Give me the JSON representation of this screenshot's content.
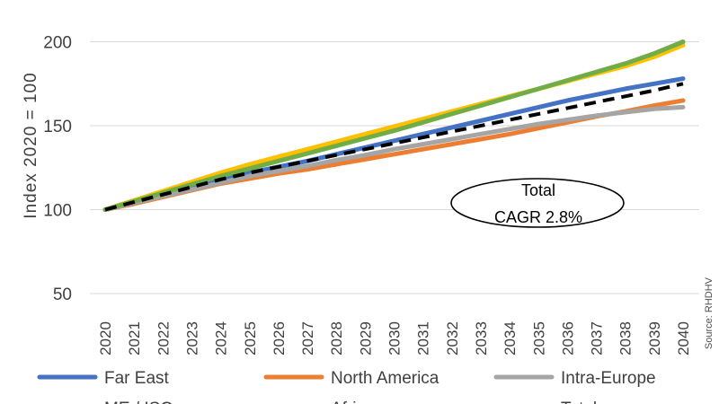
{
  "chart_data": {
    "type": "line",
    "x": [
      2020,
      2021,
      2022,
      2023,
      2024,
      2025,
      2026,
      2027,
      2028,
      2029,
      2030,
      2031,
      2032,
      2033,
      2034,
      2035,
      2036,
      2037,
      2038,
      2039,
      2040
    ],
    "x_tick_labels": [
      "2020",
      "2021",
      "2022",
      "2023",
      "2024",
      "2025",
      "2026",
      "2027",
      "2028",
      "2029",
      "2030",
      "2031",
      "2032",
      "2033",
      "2034",
      "2035",
      "2036",
      "2037",
      "2038",
      "2039",
      "2040"
    ],
    "ylabel": "Index 2020 = 100",
    "ylim": [
      50,
      210
    ],
    "yticks": [
      50,
      100,
      150,
      200
    ],
    "grid": "horizontal",
    "legend_position": "bottom",
    "series": [
      {
        "name": "Far East",
        "color": "#4472C4",
        "dash": "solid",
        "values": [
          100,
          104,
          108.5,
          113,
          117.5,
          122,
          125.5,
          129,
          133,
          137,
          141,
          145,
          149,
          153,
          157,
          161,
          165,
          168.5,
          172,
          175,
          178
        ]
      },
      {
        "name": "North America",
        "color": "#ED7D31",
        "dash": "solid",
        "values": [
          100,
          103.5,
          107.5,
          111.5,
          115.5,
          118.5,
          121.5,
          124,
          127,
          130,
          133,
          136,
          139,
          142,
          145,
          148.5,
          152,
          155.5,
          158.5,
          162,
          165
        ]
      },
      {
        "name": "Intra-Europe",
        "color": "#A5A5A5",
        "dash": "solid",
        "values": [
          100,
          104,
          108,
          112,
          116,
          120,
          123,
          126,
          129.5,
          132.5,
          136,
          139,
          142,
          145,
          148,
          151,
          153.5,
          156,
          158,
          160,
          161
        ]
      },
      {
        "name": "ME / ISC",
        "color": "#FFC000",
        "dash": "solid",
        "values": [
          100,
          105.5,
          111,
          116.5,
          122,
          127,
          131.5,
          136,
          140.5,
          145,
          149.5,
          154,
          158.5,
          163,
          167.5,
          172,
          176.5,
          181,
          185.5,
          191,
          198
        ]
      },
      {
        "name": "Africa",
        "color": "#70AD47",
        "dash": "solid",
        "values": [
          100,
          105,
          110,
          115,
          120,
          124.5,
          129,
          133.5,
          138,
          142.5,
          147,
          152,
          157,
          162,
          167,
          172,
          177,
          182,
          187,
          193,
          200
        ]
      },
      {
        "name": "Total",
        "color": "#000000",
        "dash": "dashed",
        "values": [
          100,
          104.5,
          109,
          113.5,
          118,
          122,
          125.5,
          129,
          132.5,
          136,
          139.5,
          143,
          146.5,
          150,
          153.5,
          157,
          160.5,
          164,
          167.5,
          171,
          175
        ]
      }
    ],
    "annotation": {
      "line1": "Total",
      "line2": "CAGR 2.8%"
    },
    "source_text": "Source: RHDHV"
  }
}
